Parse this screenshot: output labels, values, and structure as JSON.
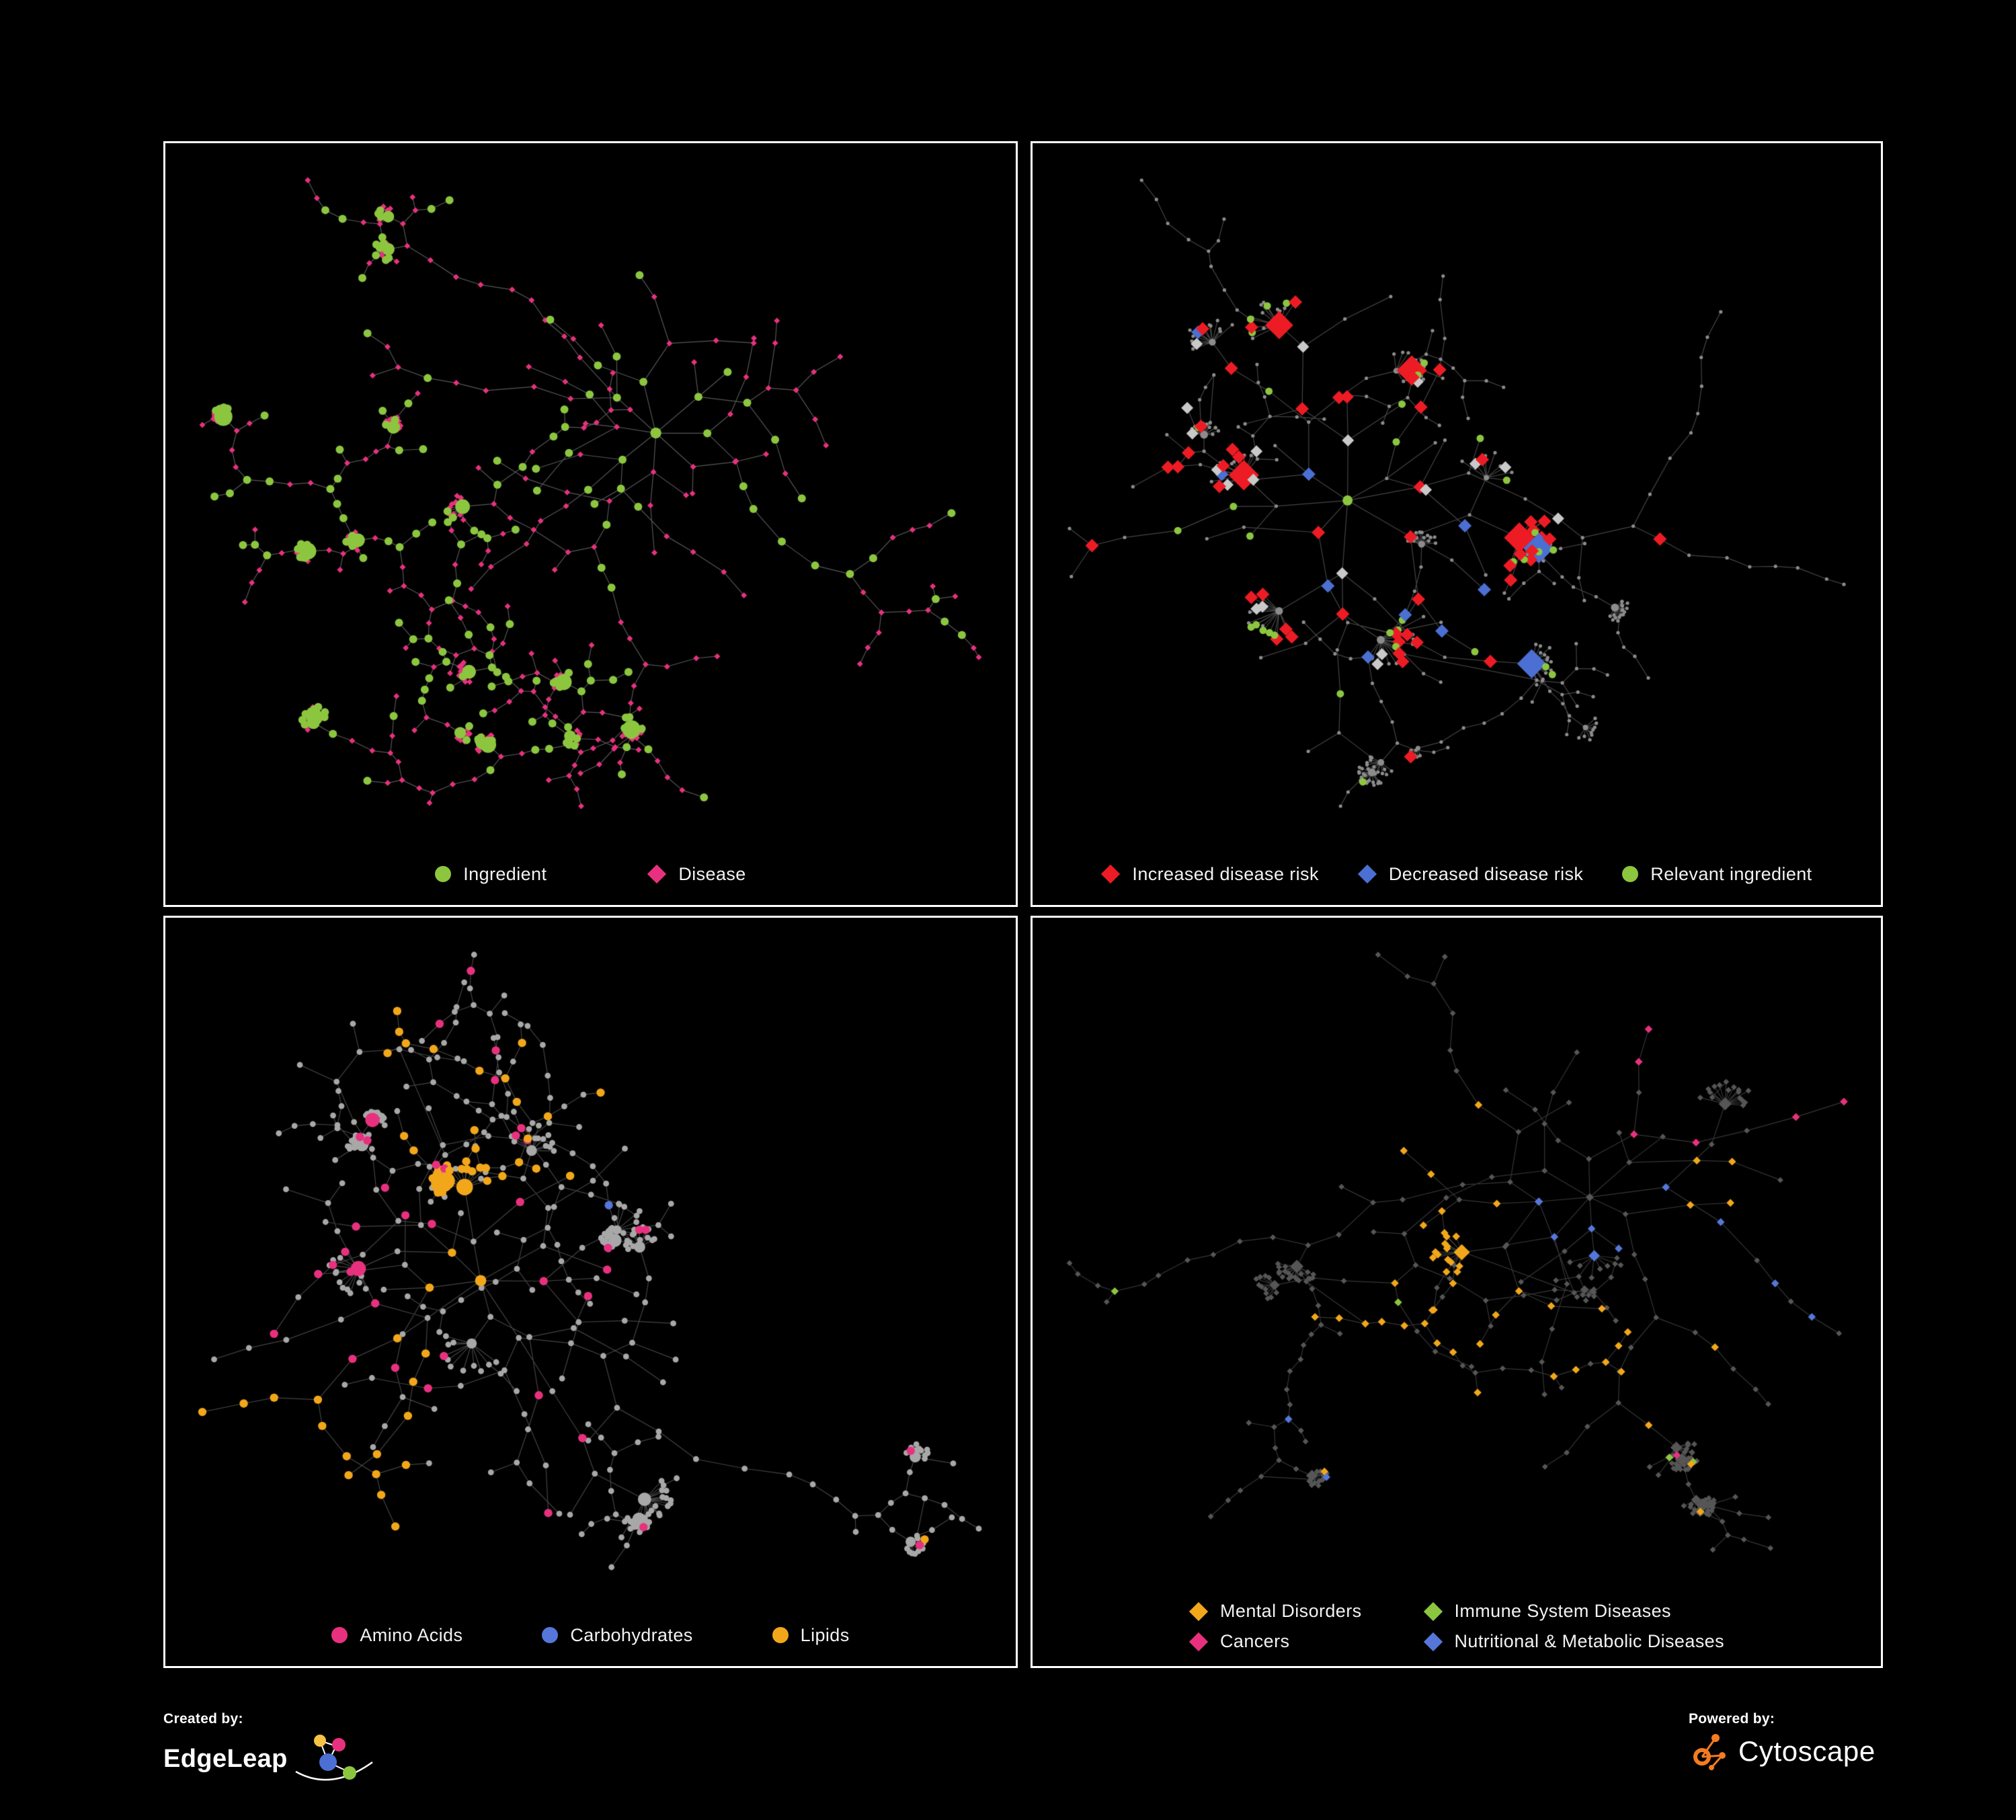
{
  "panels": [
    {
      "name": "ingredient-disease-network",
      "legend": [
        {
          "label": "Ingredient",
          "shape": "circle",
          "color": "#8CC63F"
        },
        {
          "label": "Disease",
          "shape": "diamond",
          "color": "#E8317E"
        }
      ],
      "net": {
        "seed": 11,
        "node_count": 520,
        "edge_color": "rgba(158,158,158,0.55)",
        "default_node": {
          "shape": "diamond",
          "color": "#E8317E",
          "size": 4.5
        },
        "groups": [
          {
            "shape": "circle",
            "color": "#8CC63F",
            "size": 6,
            "share": 0.36,
            "mode": "random"
          }
        ],
        "hub_group": 0
      }
    },
    {
      "name": "disease-risk-network",
      "legend": [
        {
          "label": "Increased disease risk",
          "shape": "diamond",
          "color": "#ED1C24"
        },
        {
          "label": "Decreased disease risk",
          "shape": "diamond",
          "color": "#4B6FD2"
        },
        {
          "label": "Relevant ingredient",
          "shape": "circle",
          "color": "#8CC63F"
        }
      ],
      "net": {
        "seed": 23,
        "node_count": 470,
        "edge_color": "rgba(138,138,138,0.5)",
        "default_node": {
          "shape": "circle",
          "color": "#8C8C8C",
          "size": 2.6
        },
        "groups": [
          {
            "shape": "diamond",
            "color": "#ED1C24",
            "size": 10,
            "share": 0.05,
            "mode": "center"
          },
          {
            "shape": "diamond",
            "color": "#4B6FD2",
            "size": 10,
            "share": 0.016,
            "mode": "center"
          },
          {
            "shape": "circle",
            "color": "#8CC63F",
            "size": 5.5,
            "share": 0.055,
            "mode": "center"
          },
          {
            "shape": "diamond",
            "color": "#C9C9C9",
            "size": 9,
            "share": 0.014,
            "mode": "center"
          }
        ]
      }
    },
    {
      "name": "nutrient-class-network",
      "legend": [
        {
          "label": "Amino Acids",
          "shape": "circle",
          "color": "#E8317E"
        },
        {
          "label": "Carbohydrates",
          "shape": "circle",
          "color": "#5577D9"
        },
        {
          "label": "Lipids",
          "shape": "circle",
          "color": "#F2A71B"
        }
      ],
      "net": {
        "seed": 37,
        "node_count": 520,
        "edge_color": "rgba(150,150,150,0.45)",
        "default_node": {
          "shape": "circle",
          "color": "#A8A8A8",
          "size": 4.4
        },
        "groups": [
          {
            "shape": "circle",
            "color": "#F2A71B",
            "size": 6.2,
            "share": 0.15,
            "mode": "cluster"
          },
          {
            "shape": "circle",
            "color": "#E8317E",
            "size": 6.2,
            "share": 0.07,
            "mode": "random"
          },
          {
            "shape": "circle",
            "color": "#5577D9",
            "size": 6.2,
            "share": 0.05,
            "mode": "cluster"
          }
        ]
      }
    },
    {
      "name": "disease-class-network",
      "legend": [
        {
          "label": "Mental Disorders",
          "shape": "diamond",
          "color": "#F2A71B"
        },
        {
          "label": "Immune System Diseases",
          "shape": "diamond",
          "color": "#8CC63F"
        },
        {
          "label": "Cancers",
          "shape": "diamond",
          "color": "#E8317E"
        },
        {
          "label": "Nutritional & Metabolic Diseases",
          "shape": "diamond",
          "color": "#5577D9"
        }
      ],
      "net": {
        "seed": 51,
        "node_count": 540,
        "edge_color": "rgba(120,120,120,0.45)",
        "default_node": {
          "shape": "diamond",
          "color": "#565656",
          "size": 4.4
        },
        "groups": [
          {
            "shape": "diamond",
            "color": "#F2A71B",
            "size": 5.8,
            "share": 0.15,
            "mode": "cluster"
          },
          {
            "shape": "diamond",
            "color": "#5577D9",
            "size": 5.8,
            "share": 0.15,
            "mode": "cluster"
          },
          {
            "shape": "diamond",
            "color": "#E8317E",
            "size": 5.8,
            "share": 0.09,
            "mode": "cluster"
          },
          {
            "shape": "diamond",
            "color": "#8CC63F",
            "size": 5.8,
            "share": 0.025,
            "mode": "random"
          }
        ]
      }
    }
  ],
  "footer": {
    "created_by_label": "Created by:",
    "created_by_name": "EdgeLeap",
    "powered_by_label": "Powered by:",
    "powered_by_name": "Cytoscape"
  },
  "colors": {
    "background": "#000000",
    "panel_border": "#ffffff",
    "legend_text": "#f2f2f2",
    "edgeleap_logo_palette": [
      "#F6C344",
      "#E8317E",
      "#4B6FD2",
      "#8CC63F"
    ],
    "cytoscape_orange": "#F47B20"
  }
}
